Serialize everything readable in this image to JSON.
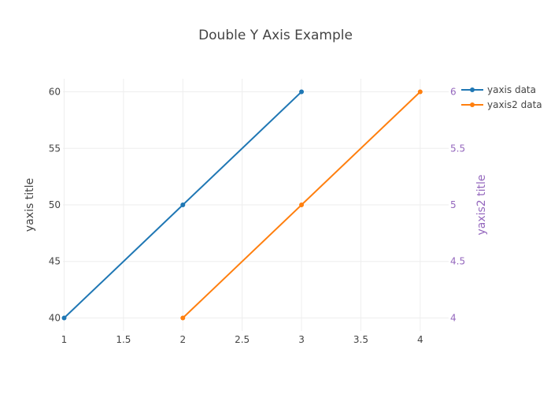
{
  "chart_data": {
    "type": "line",
    "title": "Double Y Axis Example",
    "xlabel": "",
    "ylabel": "yaxis title",
    "y2label": "yaxis2 title",
    "x_ticks": [
      "1",
      "1.5",
      "2",
      "2.5",
      "3",
      "3.5",
      "4"
    ],
    "y_ticks": [
      "40",
      "45",
      "50",
      "55",
      "60"
    ],
    "y2_ticks": [
      "4",
      "4.5",
      "5",
      "5.5",
      "6"
    ],
    "xlim": [
      0.99,
      4.24
    ],
    "ylim": [
      38.85,
      61.15
    ],
    "y2lim": [
      3.885,
      6.115
    ],
    "grid": true,
    "legend_position": "top-right",
    "y2_color": "#9467bd",
    "series": [
      {
        "name": "yaxis data",
        "axis": "y",
        "color": "#1f77b4",
        "x": [
          1,
          2,
          3
        ],
        "y": [
          40,
          50,
          60
        ]
      },
      {
        "name": "yaxis2 data",
        "axis": "y2",
        "color": "#ff7f0e",
        "x": [
          2,
          3,
          4
        ],
        "y": [
          4,
          5,
          6
        ]
      }
    ]
  }
}
